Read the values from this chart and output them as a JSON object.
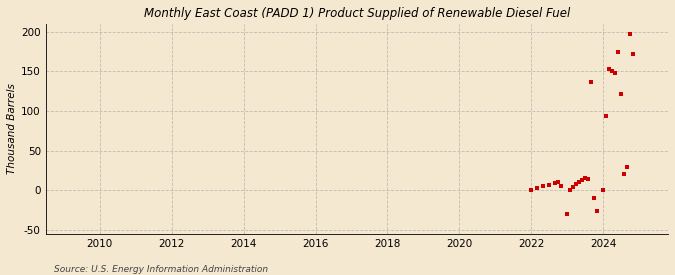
{
  "title": "Monthly East Coast (PADD 1) Product Supplied of Renewable Diesel Fuel",
  "ylabel": "Thousand Barrels",
  "source": "Source: U.S. Energy Information Administration",
  "xlim": [
    2008.5,
    2025.8
  ],
  "ylim": [
    -55,
    210
  ],
  "yticks": [
    -50,
    0,
    50,
    100,
    150,
    200
  ],
  "xticks": [
    2010,
    2012,
    2014,
    2016,
    2018,
    2020,
    2022,
    2024
  ],
  "background_color": "#f5e8d0",
  "plot_bg_color": "#f5e8d0",
  "marker_color": "#cc0000",
  "marker": "s",
  "marker_size": 3.5,
  "data_points": [
    [
      2022.0,
      1
    ],
    [
      2022.17,
      3
    ],
    [
      2022.33,
      5
    ],
    [
      2022.5,
      7
    ],
    [
      2022.67,
      9
    ],
    [
      2022.75,
      10
    ],
    [
      2022.83,
      6
    ],
    [
      2023.0,
      -30
    ],
    [
      2023.08,
      1
    ],
    [
      2023.17,
      4
    ],
    [
      2023.25,
      8
    ],
    [
      2023.33,
      10
    ],
    [
      2023.42,
      13
    ],
    [
      2023.5,
      15
    ],
    [
      2023.58,
      14
    ],
    [
      2023.67,
      137
    ],
    [
      2023.75,
      -10
    ],
    [
      2023.83,
      -26
    ],
    [
      2024.0,
      1
    ],
    [
      2024.08,
      94
    ],
    [
      2024.17,
      153
    ],
    [
      2024.25,
      150
    ],
    [
      2024.33,
      148
    ],
    [
      2024.42,
      174
    ],
    [
      2024.5,
      122
    ],
    [
      2024.58,
      20
    ],
    [
      2024.67,
      30
    ],
    [
      2024.75,
      197
    ],
    [
      2024.83,
      172
    ]
  ]
}
